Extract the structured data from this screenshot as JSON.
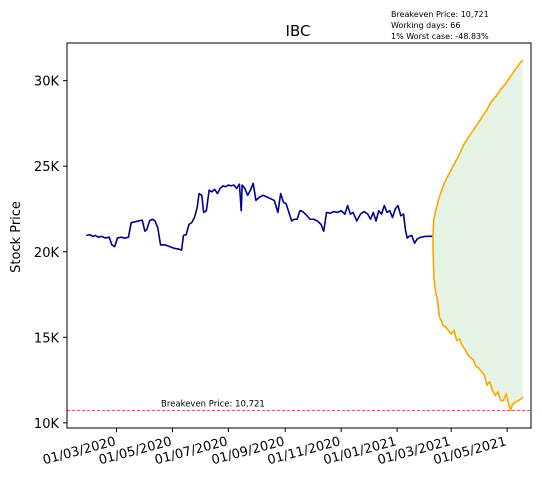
{
  "chart_data": {
    "type": "line",
    "title": "IBC",
    "ylabel": "Stock Price",
    "xlabel": "",
    "info_lines": [
      "Breakeven Price: 10,721",
      "Working days: 66",
      "1% Worst case: -48.83%"
    ],
    "breakeven": {
      "value": 10721,
      "label": "Breakeven Price: 10,721",
      "color": "#d62728"
    },
    "ylim": [
      9700,
      32200
    ],
    "xlim": [
      "2020-01-07",
      "2021-05-27"
    ],
    "y_ticks": [
      {
        "value": 10000,
        "label": "10K"
      },
      {
        "value": 15000,
        "label": "15K"
      },
      {
        "value": 20000,
        "label": "20K"
      },
      {
        "value": 25000,
        "label": "25K"
      },
      {
        "value": 30000,
        "label": "30K"
      }
    ],
    "x_ticks": [
      {
        "date": "2020-03-01",
        "label": "01/03/2020"
      },
      {
        "date": "2020-05-01",
        "label": "01/05/2020"
      },
      {
        "date": "2020-07-01",
        "label": "01/07/2020"
      },
      {
        "date": "2020-09-01",
        "label": "01/09/2020"
      },
      {
        "date": "2020-11-01",
        "label": "01/11/2020"
      },
      {
        "date": "2021-01-01",
        "label": "01/01/2021"
      },
      {
        "date": "2021-03-01",
        "label": "01/03/2021"
      },
      {
        "date": "2021-05-01",
        "label": "01/05/2021"
      }
    ],
    "grid": false,
    "series": [
      {
        "role": "history",
        "color": "#00008b",
        "points": [
          [
            "2020-01-28",
            20950
          ],
          [
            "2020-02-01",
            21000
          ],
          [
            "2020-02-04",
            20900
          ],
          [
            "2020-02-07",
            20950
          ],
          [
            "2020-02-10",
            20850
          ],
          [
            "2020-02-14",
            20900
          ],
          [
            "2020-02-18",
            20800
          ],
          [
            "2020-02-22",
            20850
          ],
          [
            "2020-02-25",
            20400
          ],
          [
            "2020-02-28",
            20300
          ],
          [
            "2020-03-02",
            20800
          ],
          [
            "2020-03-06",
            20850
          ],
          [
            "2020-03-10",
            20800
          ],
          [
            "2020-03-14",
            20850
          ],
          [
            "2020-03-17",
            21700
          ],
          [
            "2020-03-21",
            21750
          ],
          [
            "2020-03-25",
            21800
          ],
          [
            "2020-03-29",
            21850
          ],
          [
            "2020-04-01",
            21200
          ],
          [
            "2020-04-03",
            21300
          ],
          [
            "2020-04-06",
            21800
          ],
          [
            "2020-04-09",
            21900
          ],
          [
            "2020-04-12",
            21800
          ],
          [
            "2020-04-15",
            21400
          ],
          [
            "2020-04-18",
            20400
          ],
          [
            "2020-04-23",
            20400
          ],
          [
            "2020-04-28",
            20300
          ],
          [
            "2020-05-03",
            20200
          ],
          [
            "2020-05-08",
            20150
          ],
          [
            "2020-05-11",
            20100
          ],
          [
            "2020-05-13",
            20950
          ],
          [
            "2020-05-16",
            21000
          ],
          [
            "2020-05-19",
            21600
          ],
          [
            "2020-05-22",
            21700
          ],
          [
            "2020-05-25",
            22000
          ],
          [
            "2020-05-28",
            22600
          ],
          [
            "2020-05-30",
            23400
          ],
          [
            "2020-06-02",
            23300
          ],
          [
            "2020-06-04",
            22300
          ],
          [
            "2020-06-07",
            22400
          ],
          [
            "2020-06-10",
            23600
          ],
          [
            "2020-06-13",
            23500
          ],
          [
            "2020-06-16",
            23650
          ],
          [
            "2020-06-19",
            23400
          ],
          [
            "2020-06-22",
            23700
          ],
          [
            "2020-06-25",
            23850
          ],
          [
            "2020-06-28",
            23800
          ],
          [
            "2020-07-01",
            23900
          ],
          [
            "2020-07-04",
            23850
          ],
          [
            "2020-07-07",
            23900
          ],
          [
            "2020-07-10",
            23700
          ],
          [
            "2020-07-13",
            23950
          ],
          [
            "2020-07-15",
            22400
          ],
          [
            "2020-07-16",
            23900
          ],
          [
            "2020-07-19",
            23700
          ],
          [
            "2020-07-22",
            23300
          ],
          [
            "2020-07-25",
            23600
          ],
          [
            "2020-07-28",
            24000
          ],
          [
            "2020-07-31",
            23000
          ],
          [
            "2020-08-04",
            23200
          ],
          [
            "2020-08-08",
            23300
          ],
          [
            "2020-08-12",
            23200
          ],
          [
            "2020-08-16",
            23100
          ],
          [
            "2020-08-20",
            23000
          ],
          [
            "2020-08-24",
            22300
          ],
          [
            "2020-08-27",
            23400
          ],
          [
            "2020-08-30",
            22900
          ],
          [
            "2020-09-02",
            22800
          ],
          [
            "2020-09-05",
            22300
          ],
          [
            "2020-09-08",
            21800
          ],
          [
            "2020-09-11",
            21900
          ],
          [
            "2020-09-14",
            21900
          ],
          [
            "2020-09-17",
            22400
          ],
          [
            "2020-09-20",
            22350
          ],
          [
            "2020-09-24",
            22150
          ],
          [
            "2020-09-28",
            21900
          ],
          [
            "2020-10-02",
            21900
          ],
          [
            "2020-10-06",
            21800
          ],
          [
            "2020-10-10",
            21600
          ],
          [
            "2020-10-13",
            21200
          ],
          [
            "2020-10-16",
            22300
          ],
          [
            "2020-10-20",
            22250
          ],
          [
            "2020-10-24",
            22350
          ],
          [
            "2020-10-28",
            22300
          ],
          [
            "2020-11-01",
            22400
          ],
          [
            "2020-11-05",
            22200
          ],
          [
            "2020-11-08",
            22700
          ],
          [
            "2020-11-11",
            22200
          ],
          [
            "2020-11-14",
            22300
          ],
          [
            "2020-11-18",
            21800
          ],
          [
            "2020-11-22",
            22200
          ],
          [
            "2020-11-26",
            22350
          ],
          [
            "2020-11-30",
            22200
          ],
          [
            "2020-12-03",
            21900
          ],
          [
            "2020-12-06",
            22300
          ],
          [
            "2020-12-09",
            21800
          ],
          [
            "2020-12-12",
            22400
          ],
          [
            "2020-12-15",
            22200
          ],
          [
            "2020-12-18",
            22700
          ],
          [
            "2020-12-21",
            22300
          ],
          [
            "2020-12-24",
            22400
          ],
          [
            "2020-12-27",
            22000
          ],
          [
            "2020-12-30",
            22500
          ],
          [
            "2021-01-02",
            22700
          ],
          [
            "2021-01-05",
            22100
          ],
          [
            "2021-01-08",
            22200
          ],
          [
            "2021-01-10",
            21300
          ],
          [
            "2021-01-12",
            20800
          ],
          [
            "2021-01-14",
            20900
          ],
          [
            "2021-01-17",
            20950
          ],
          [
            "2021-01-20",
            20500
          ],
          [
            "2021-01-23",
            20750
          ],
          [
            "2021-01-27",
            20850
          ],
          [
            "2021-02-01",
            20900
          ],
          [
            "2021-02-05",
            20900
          ],
          [
            "2021-02-09",
            20900
          ]
        ]
      },
      {
        "role": "best-case projection",
        "color": "#ffa500",
        "points": [
          [
            "2021-02-09",
            20900
          ],
          [
            "2021-02-10",
            21900
          ],
          [
            "2021-02-13",
            22600
          ],
          [
            "2021-02-16",
            23200
          ],
          [
            "2021-02-20",
            23800
          ],
          [
            "2021-02-24",
            24300
          ],
          [
            "2021-02-28",
            24700
          ],
          [
            "2021-03-05",
            25200
          ],
          [
            "2021-03-10",
            25700
          ],
          [
            "2021-03-15",
            26300
          ],
          [
            "2021-03-20",
            26700
          ],
          [
            "2021-03-25",
            27100
          ],
          [
            "2021-03-30",
            27500
          ],
          [
            "2021-04-04",
            27900
          ],
          [
            "2021-04-09",
            28300
          ],
          [
            "2021-04-14",
            28800
          ],
          [
            "2021-04-19",
            29100
          ],
          [
            "2021-04-24",
            29500
          ],
          [
            "2021-04-29",
            29800
          ],
          [
            "2021-05-04",
            30200
          ],
          [
            "2021-05-08",
            30500
          ],
          [
            "2021-05-12",
            30800
          ],
          [
            "2021-05-16",
            31100
          ],
          [
            "2021-05-18",
            31200
          ]
        ]
      },
      {
        "role": "worst-case projection",
        "color": "#ffa500",
        "points": [
          [
            "2021-02-09",
            20900
          ],
          [
            "2021-02-10",
            18500
          ],
          [
            "2021-02-12",
            17600
          ],
          [
            "2021-02-14",
            17200
          ],
          [
            "2021-02-16",
            16200
          ],
          [
            "2021-02-18",
            16000
          ],
          [
            "2021-02-20",
            15700
          ],
          [
            "2021-02-23",
            15600
          ],
          [
            "2021-02-26",
            15400
          ],
          [
            "2021-03-01",
            15200
          ],
          [
            "2021-03-04",
            15400
          ],
          [
            "2021-03-07",
            14800
          ],
          [
            "2021-03-10",
            14900
          ],
          [
            "2021-03-13",
            14500
          ],
          [
            "2021-03-16",
            14300
          ],
          [
            "2021-03-19",
            14000
          ],
          [
            "2021-03-22",
            13800
          ],
          [
            "2021-03-25",
            13700
          ],
          [
            "2021-03-28",
            13300
          ],
          [
            "2021-03-31",
            13200
          ],
          [
            "2021-04-03",
            13000
          ],
          [
            "2021-04-06",
            12800
          ],
          [
            "2021-04-09",
            12200
          ],
          [
            "2021-04-12",
            12400
          ],
          [
            "2021-04-15",
            11900
          ],
          [
            "2021-04-18",
            11600
          ],
          [
            "2021-04-21",
            11800
          ],
          [
            "2021-04-24",
            11300
          ],
          [
            "2021-04-27",
            11300
          ],
          [
            "2021-04-30",
            11700
          ],
          [
            "2021-05-03",
            11000
          ],
          [
            "2021-05-05",
            10750
          ],
          [
            "2021-05-07",
            11100
          ],
          [
            "2021-05-10",
            11200
          ],
          [
            "2021-05-13",
            11300
          ],
          [
            "2021-05-16",
            11400
          ],
          [
            "2021-05-18",
            11500
          ]
        ]
      }
    ],
    "band": {
      "between": [
        "best-case projection",
        "worst-case projection"
      ],
      "color": "#2ca02c",
      "opacity": 0.13
    }
  }
}
